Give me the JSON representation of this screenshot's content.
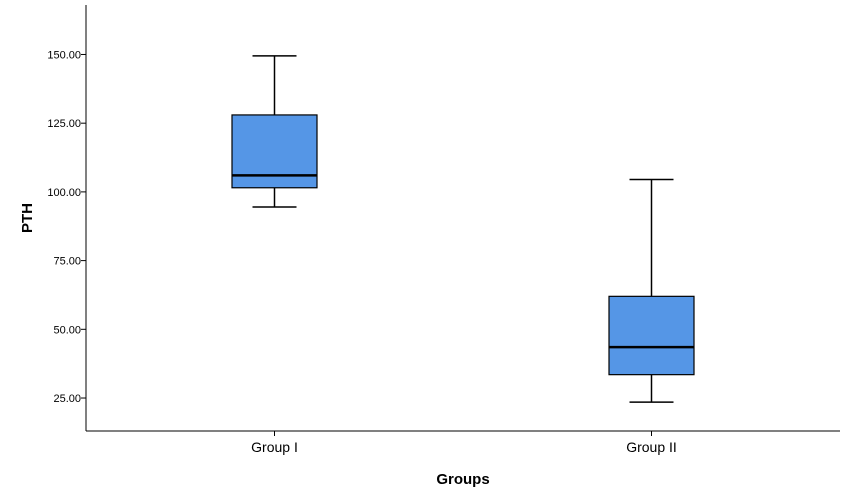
{
  "chart_data": {
    "type": "boxplot",
    "title": "",
    "xlabel": "Groups",
    "ylabel": "PTH",
    "ylim": [
      13,
      168
    ],
    "yticks": [
      25,
      50,
      75,
      100,
      125,
      150
    ],
    "ytick_labels": [
      "25.00",
      "50.00",
      "75.00",
      "100.00",
      "125.00",
      "150.00"
    ],
    "categories": [
      "Group I",
      "Group II"
    ],
    "boxes": [
      {
        "category": "Group I",
        "whisker_low": 94.5,
        "q1": 101.5,
        "median": 106.0,
        "q3": 128.0,
        "whisker_high": 149.5
      },
      {
        "category": "Group II",
        "whisker_low": 23.5,
        "q1": 33.5,
        "median": 43.5,
        "q3": 62.0,
        "whisker_high": 104.5
      }
    ],
    "box_color": "#5596e6",
    "line_color": "#000000",
    "grid": false
  }
}
